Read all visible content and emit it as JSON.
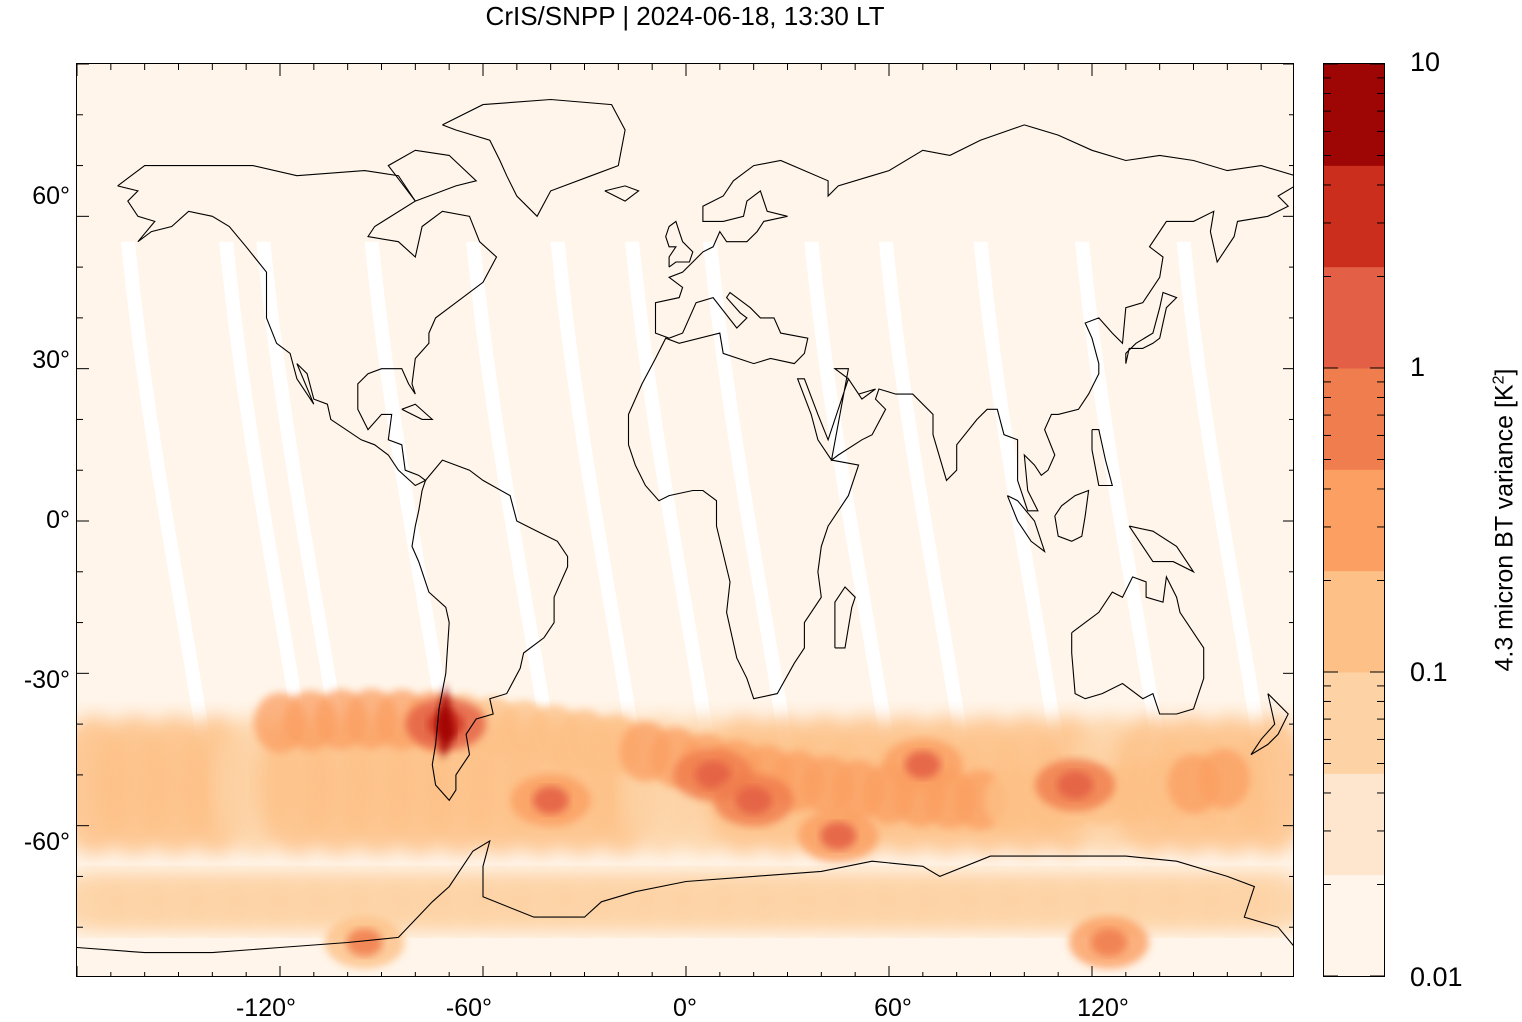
{
  "title": "CrIS/SNPP | 2024-06-18, 13:30 LT",
  "axes": {
    "x_ticks": [
      "-120°",
      "-60°",
      "0°",
      "60°",
      "120°"
    ],
    "y_ticks": [
      "60°",
      "30°",
      "0°",
      "-30°",
      "-60°"
    ],
    "lon_range": [
      -180,
      180
    ],
    "lat_range": [
      -90,
      90
    ]
  },
  "colorbar": {
    "title_main": "4.3 micron BT variance [K",
    "title_sup": "2",
    "title_end": "]",
    "scale": "log",
    "labels": [
      "10",
      "1",
      "0.1",
      "0.01"
    ],
    "range": [
      0.01,
      10
    ],
    "bins": [
      {
        "color": "#fff5eb"
      },
      {
        "color": "#fee6ce"
      },
      {
        "color": "#fdd3a5"
      },
      {
        "color": "#fdc187"
      },
      {
        "color": "#fb9f62"
      },
      {
        "color": "#f07d4e"
      },
      {
        "color": "#e35f45"
      },
      {
        "color": "#cc2e1d"
      },
      {
        "color": "#9e0606"
      }
    ]
  },
  "colors": {
    "background": "#fff5ea",
    "swath_gap": "#ffffff",
    "coastline": "#000000"
  },
  "map_data": {
    "description_values": "BT variance field: low (<0.1 K²) over most of globe, elevated 0.3–3 K² across Southern Ocean 35°S–70°S, peak ~4 K² over southern Andes near 40°S, 70°W",
    "hotspots": [
      {
        "lon": -71,
        "lat": -40,
        "value": 4.0
      },
      {
        "lon": 8,
        "lat": -50,
        "value": 1.5
      },
      {
        "lon": 20,
        "lat": -55,
        "value": 1.2
      },
      {
        "lon": 45,
        "lat": -62,
        "value": 1.0
      },
      {
        "lon": 70,
        "lat": -48,
        "value": 1.0
      },
      {
        "lon": 115,
        "lat": -52,
        "value": 1.2
      },
      {
        "lon": -40,
        "lat": -55,
        "value": 1.0
      },
      {
        "lon": 125,
        "lat": -83,
        "value": 0.8
      },
      {
        "lon": -95,
        "lat": -83,
        "value": 0.5
      }
    ]
  }
}
